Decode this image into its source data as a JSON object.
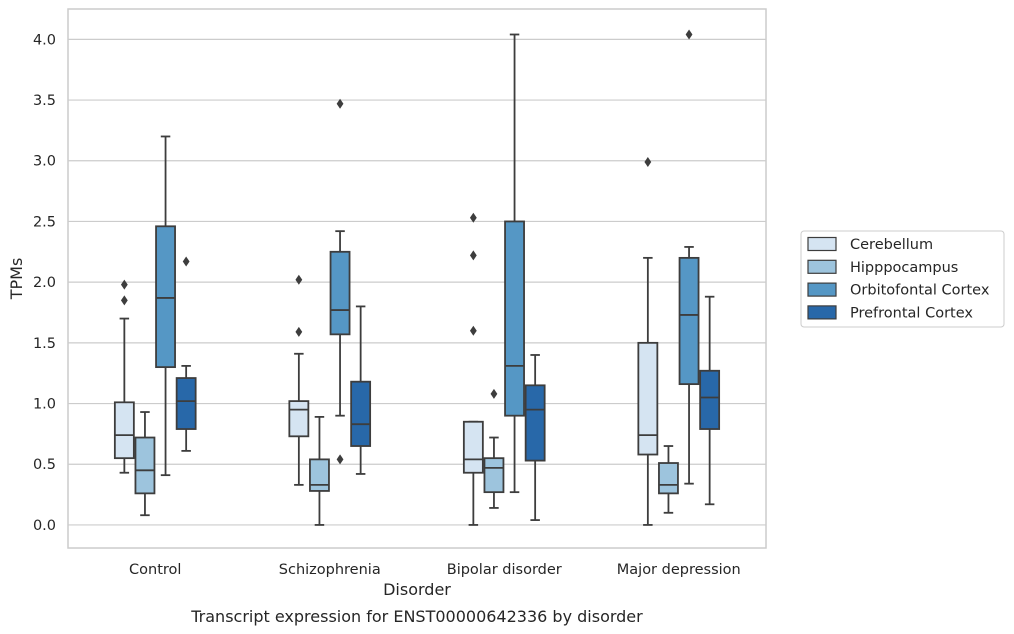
{
  "chart_data": {
    "type": "box",
    "xlabel": "Disorder",
    "ylabel": "TPMs",
    "caption": "Transcript expression for ENST00000642336 by disorder",
    "ylim": [
      -0.19,
      4.25
    ],
    "yticks": [
      "0.0",
      "0.5",
      "1.0",
      "1.5",
      "2.0",
      "2.5",
      "3.0",
      "3.5",
      "4.0"
    ],
    "grid": true,
    "legend_position": "right",
    "categories": [
      "Control",
      "Schizophrenia",
      "Bipolar disorder",
      "Major depression"
    ],
    "series": [
      {
        "name": "Cerebellum",
        "color": "#d5e4f2",
        "boxes": [
          {
            "whislo": 0.43,
            "q1": 0.55,
            "med": 0.74,
            "q3": 1.01,
            "whishi": 1.7,
            "fliers": [
              1.85,
              1.98
            ]
          },
          {
            "whislo": 0.33,
            "q1": 0.73,
            "med": 0.95,
            "q3": 1.02,
            "whishi": 1.41,
            "fliers": [
              1.59,
              2.02
            ]
          },
          {
            "whislo": 0.0,
            "q1": 0.43,
            "med": 0.54,
            "q3": 0.85,
            "whishi": 0.85,
            "fliers": [
              1.6,
              2.22,
              2.53
            ]
          },
          {
            "whislo": 0.0,
            "q1": 0.58,
            "med": 0.74,
            "q3": 1.5,
            "whishi": 2.2,
            "fliers": [
              2.99
            ]
          }
        ]
      },
      {
        "name": "Hipppocampus",
        "color": "#9dc4dd",
        "boxes": [
          {
            "whislo": 0.08,
            "q1": 0.26,
            "med": 0.45,
            "q3": 0.72,
            "whishi": 0.93,
            "fliers": []
          },
          {
            "whislo": 0.0,
            "q1": 0.28,
            "med": 0.33,
            "q3": 0.54,
            "whishi": 0.89,
            "fliers": []
          },
          {
            "whislo": 0.14,
            "q1": 0.27,
            "med": 0.47,
            "q3": 0.55,
            "whishi": 0.72,
            "fliers": [
              1.08
            ]
          },
          {
            "whislo": 0.1,
            "q1": 0.26,
            "med": 0.33,
            "q3": 0.51,
            "whishi": 0.65,
            "fliers": []
          }
        ]
      },
      {
        "name": "Orbitofontal Cortex",
        "color": "#5597c5",
        "boxes": [
          {
            "whislo": 0.41,
            "q1": 1.3,
            "med": 1.87,
            "q3": 2.46,
            "whishi": 3.2,
            "fliers": []
          },
          {
            "whislo": 0.9,
            "q1": 1.57,
            "med": 1.77,
            "q3": 2.25,
            "whishi": 2.42,
            "fliers": [
              0.54,
              3.47
            ]
          },
          {
            "whislo": 0.27,
            "q1": 0.9,
            "med": 1.31,
            "q3": 2.5,
            "whishi": 4.04,
            "fliers": []
          },
          {
            "whislo": 0.34,
            "q1": 1.16,
            "med": 1.73,
            "q3": 2.2,
            "whishi": 2.29,
            "fliers": [
              4.04
            ]
          }
        ]
      },
      {
        "name": "Prefrontal Cortex",
        "color": "#2868a9",
        "boxes": [
          {
            "whislo": 0.61,
            "q1": 0.79,
            "med": 1.02,
            "q3": 1.21,
            "whishi": 1.31,
            "fliers": [
              2.17
            ]
          },
          {
            "whislo": 0.42,
            "q1": 0.65,
            "med": 0.83,
            "q3": 1.18,
            "whishi": 1.8,
            "fliers": []
          },
          {
            "whislo": 0.04,
            "q1": 0.53,
            "med": 0.95,
            "q3": 1.15,
            "whishi": 1.4,
            "fliers": []
          },
          {
            "whislo": 0.17,
            "q1": 0.79,
            "med": 1.05,
            "q3": 1.27,
            "whishi": 1.88,
            "fliers": []
          }
        ]
      }
    ]
  }
}
